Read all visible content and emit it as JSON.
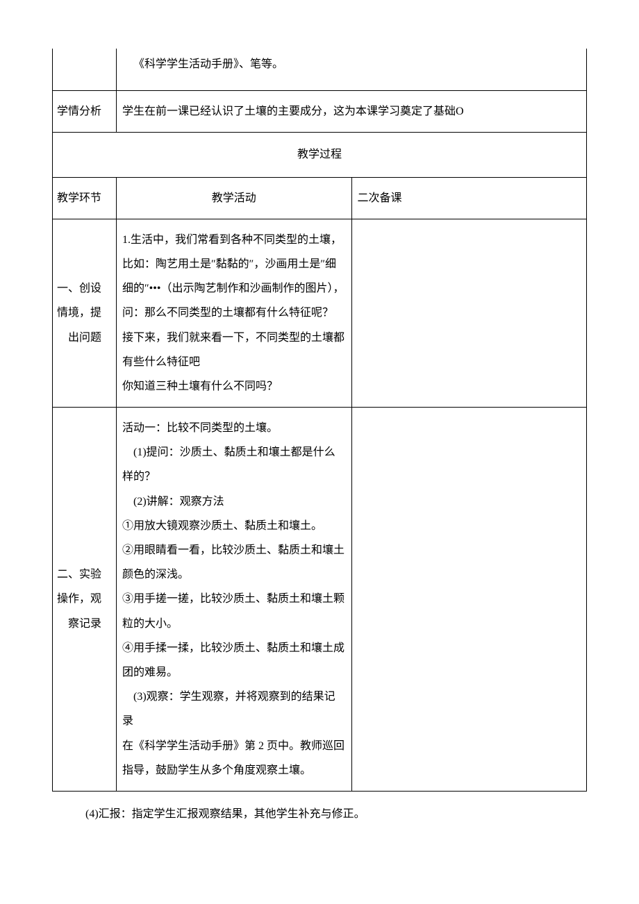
{
  "colors": {
    "text": "#000000",
    "border": "#000000",
    "background": "#ffffff"
  },
  "row1": {
    "text": "《科学学生活动手册》、笔等。"
  },
  "row2": {
    "label": "学情分析",
    "text": "学生在前一课已经认识了土壤的主要成分，这为本课学习奠定了基础O"
  },
  "process_header": "教学过程",
  "table_header": {
    "col1": "教学环节",
    "col2": "教学活动",
    "col3": "二次备课"
  },
  "section1": {
    "label_line1": "一、创设",
    "label_line2": "情境，提",
    "label_line3": "出问题",
    "p1": "1.生活中，我们常看到各种不同类型的土壤，比如：陶艺用土是″黏黏的″，沙画用土是″细细的″•••（出示陶艺制作和沙画制作的图片），问：那么不同类型的土壤都有什么特征呢？",
    "p2": "接下来，我们就来看一下，不同类型的土壤都有些什么特征吧",
    "p3": "你知道三种土壤有什么不同吗？"
  },
  "section2": {
    "label_line1": "二、实验",
    "label_line2": "操作，观",
    "label_line3": "察记录",
    "title": "活动一：比较不同类型的土壤。",
    "q1": "(1)提问：沙质土、黏质土和壤土都是什么样的？",
    "q2": "(2)讲解：观察方法",
    "m1": "①用放大镜观察沙质土、黏质土和壤土。",
    "m2": "②用眼睛看一看，比较沙质土、黏质土和壤土颜色的深浅。",
    "m3": "③用手搓一搓，比较沙质土、黏质土和壤土颗粒的大小。",
    "m4": "④用手揉一揉，比较沙质土、黏质土和壤土成团的难易。",
    "q3a": "(3)观察：学生观察，并将观察到的结果记录",
    "q3b": "在《科学学生活动手册》第 2 页中。教师巡回指导，鼓励学生从多个角度观察土壤。"
  },
  "below": "(4)汇报：指定学生汇报观察结果，其他学生补充与修正。"
}
